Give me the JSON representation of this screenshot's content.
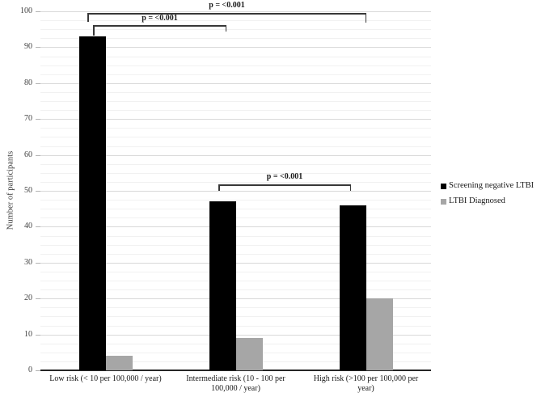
{
  "chart_data": {
    "type": "bar",
    "title": "",
    "xlabel": "",
    "ylabel": "Number of participants",
    "ylim": [
      0,
      100
    ],
    "ytick_interval": 10,
    "minor_grid_interval": 2.5,
    "grid": true,
    "legend_position": "right-middle",
    "categories": [
      "Low risk (< 10 per 100,000 / year)",
      "Intermediate risk (10 - 100 per\n100,000 / year)",
      "High risk (>100 per 100,000 per\nyear)"
    ],
    "series": [
      {
        "name": "Screening negative LTBI",
        "color": "#000000",
        "values": [
          93,
          47,
          46
        ]
      },
      {
        "name": "LTBI Diagnosed",
        "color": "#a6a6a6",
        "values": [
          4,
          9,
          20
        ]
      }
    ],
    "significance_brackets": [
      {
        "label": "p = <0.001",
        "between": [
          "Low risk",
          "High risk"
        ]
      },
      {
        "label": "p = <0.001",
        "between": [
          "Low risk",
          "Intermediate risk"
        ]
      },
      {
        "label": "p = <0.001",
        "between": [
          "Intermediate risk",
          "High risk"
        ]
      }
    ],
    "colors": {
      "bar_screening_negative": "#000000",
      "bar_ltbi_diagnosed": "#a6a6a6",
      "major_grid": "#d9d9d9",
      "minor_grid": "#f1f1f1",
      "axis_line": "#262626",
      "tick_text": "#404040",
      "bracket": "#383838"
    }
  }
}
